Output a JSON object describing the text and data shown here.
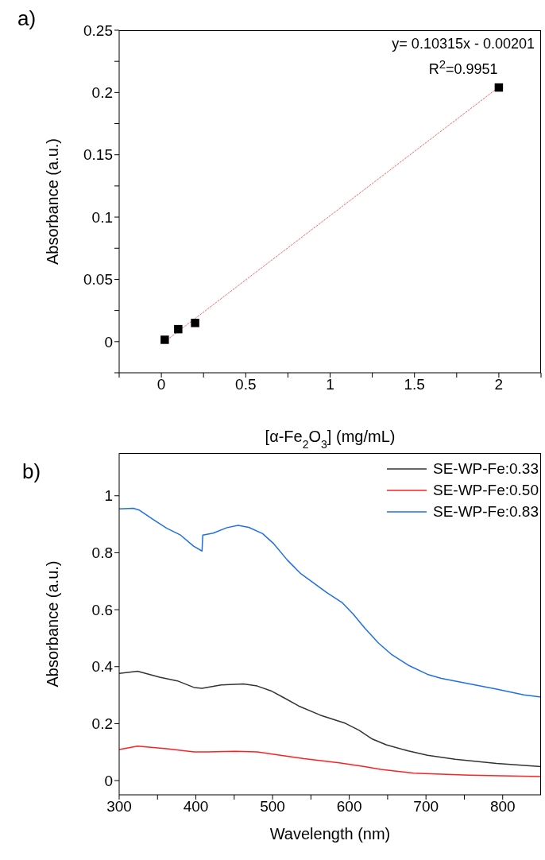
{
  "chart_data": [
    {
      "type": "scatter",
      "title": "a)",
      "xlabel": "[α-Fe$_{2}$O$_{3}$] (mg/mL)",
      "ylabel": "Absorbance (a.u.)",
      "annotations": [
        "y= 0.10315x - 0.00201",
        "R$^{2}$=0.9951"
      ],
      "marker": "square",
      "legend": false,
      "xlim": [
        -0.25,
        2.25
      ],
      "ylim": [
        -0.025,
        0.25
      ],
      "xticks": [
        {
          "value": -0.25,
          "label": null
        },
        0,
        {
          "value": 0.25,
          "label": null
        },
        0.5,
        {
          "value": 0.75,
          "label": null
        },
        1,
        {
          "value": 1.25,
          "label": null
        },
        1.5,
        {
          "value": 1.75,
          "label": null
        },
        2,
        {
          "value": 2.25,
          "label": null
        }
      ],
      "yticks": [
        {
          "value": -0.025,
          "label": null
        },
        0,
        {
          "value": 0.025,
          "label": null
        },
        0.05,
        {
          "value": 0.075,
          "label": null
        },
        0.1,
        {
          "value": 0.125,
          "label": null
        },
        0.15,
        {
          "value": 0.175,
          "label": null
        },
        0.2,
        {
          "value": 0.225,
          "label": null
        },
        0.25
      ],
      "x": [
        0.02,
        0.1,
        0.2,
        2
      ],
      "series": [
        {
          "color": "#000000",
          "values": [
            0.0015,
            0.01,
            0.015,
            0.204
          ]
        },
        {
          "type": "line",
          "color": "#ff6060",
          "line_style": "dotted",
          "marker": "none",
          "x": [
            0.02,
            2
          ],
          "values": [
            0.0,
            0.2043
          ]
        }
      ]
    },
    {
      "type": "line",
      "title": "b)",
      "xlabel": "Wavelength (nm)",
      "ylabel": "Absorbance (a.u.)",
      "legend": "top right",
      "marker": "none",
      "xlim": [
        300,
        850
      ],
      "ylim": [
        -0.05,
        1.15
      ],
      "xticks": [
        300,
        {
          "value": 350,
          "label": null
        },
        400,
        {
          "value": 450,
          "label": null
        },
        500,
        {
          "value": 550,
          "label": null
        },
        600,
        {
          "value": 650,
          "label": null
        },
        700,
        {
          "value": 750,
          "label": null
        },
        800
      ],
      "yticks": [
        0,
        0.2,
        0.4,
        0.6,
        0.8,
        1
      ],
      "series": [
        {
          "name": "SE-WP-Fe:0.33",
          "color": "#333333",
          "x": [
            300,
            324,
            352.7,
            376,
            397.5,
            408,
            433,
            462,
            480,
            498,
            516,
            534,
            562,
            595,
            612.5,
            630,
            648,
            677,
            702,
            738,
            792,
            850
          ],
          "values": [
            0.376,
            0.384,
            0.363,
            0.35,
            0.327,
            0.324,
            0.336,
            0.339,
            0.332,
            0.315,
            0.289,
            0.262,
            0.23,
            0.201,
            0.177,
            0.146,
            0.126,
            0.104,
            0.089,
            0.075,
            0.06,
            0.049
          ]
        },
        {
          "name": "SE-WP-Fe:0.50",
          "color": "#ff2020",
          "x": [
            300,
            324,
            362,
            397.5,
            415,
            451,
            480,
            505,
            541,
            587,
            620,
            641,
            684,
            756,
            850
          ],
          "values": [
            0.109,
            0.121,
            0.112,
            0.101,
            0.101,
            0.103,
            0.101,
            0.091,
            0.077,
            0.062,
            0.049,
            0.039,
            0.026,
            0.019,
            0.014
          ]
        },
        {
          "name": "SE-WP-Fe:0.83",
          "color": "#1f6fe6",
          "x": [
            300,
            318.6,
            326,
            344,
            362,
            380,
            397,
            408,
            409,
            422.6,
            440.5,
            455,
            469,
            487,
            501,
            519,
            537,
            552,
            570,
            591,
            605,
            620,
            638,
            655.5,
            677,
            702,
            720,
            756,
            792,
            827.6,
            850
          ],
          "values": [
            0.954,
            0.956,
            0.95,
            0.917,
            0.886,
            0.862,
            0.823,
            0.806,
            0.862,
            0.869,
            0.888,
            0.896,
            0.889,
            0.867,
            0.833,
            0.775,
            0.726,
            0.697,
            0.661,
            0.624,
            0.585,
            0.536,
            0.483,
            0.442,
            0.405,
            0.373,
            0.359,
            0.34,
            0.321,
            0.301,
            0.293
          ]
        }
      ]
    }
  ]
}
